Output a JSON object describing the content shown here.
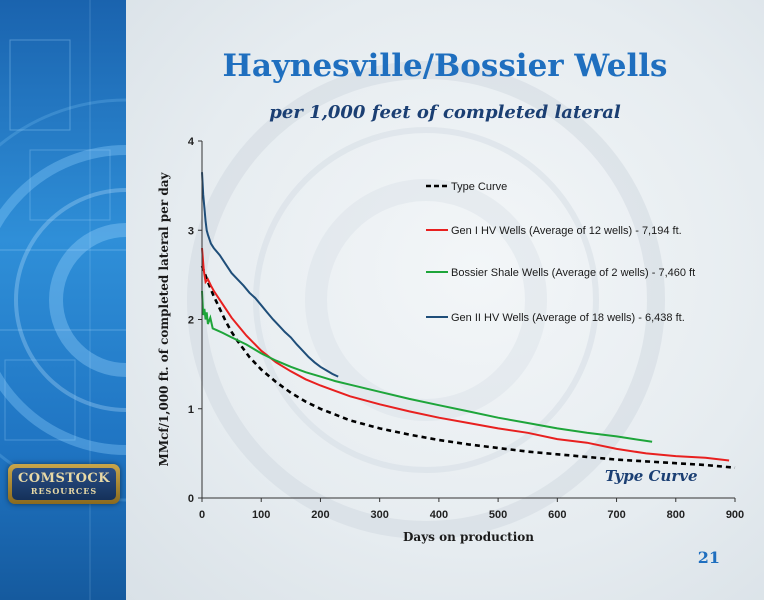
{
  "slide": {
    "title": "Haynesville/Bossier Wells",
    "subtitle": "per 1,000 feet of completed lateral",
    "page_number": "21",
    "logo": {
      "line1": "COMSTOCK",
      "line2": "RESOURCES"
    }
  },
  "colors": {
    "title": "#1f6fbf",
    "subtitle": "#1b3f73",
    "sidebar": "#2f8fd8"
  },
  "chart_data": {
    "type": "line",
    "xlabel": "Days on production",
    "ylabel": "MMcf/1,000 ft. of completed lateral per day",
    "xlim": [
      0,
      900
    ],
    "ylim": [
      0,
      4
    ],
    "xticks": [
      0,
      100,
      200,
      300,
      400,
      500,
      600,
      700,
      800,
      900
    ],
    "yticks": [
      0,
      1,
      2,
      3,
      4
    ],
    "grid": false,
    "legend_position": "upper-right",
    "annotation": "Type Curve",
    "series": [
      {
        "name": "Type Curve",
        "color": "#000000",
        "dash": true,
        "x": [
          0,
          10,
          20,
          30,
          40,
          50,
          60,
          80,
          100,
          125,
          150,
          175,
          200,
          250,
          300,
          350,
          400,
          450,
          500,
          550,
          600,
          650,
          700,
          750,
          800,
          850,
          900
        ],
        "y": [
          2.6,
          2.42,
          2.26,
          2.12,
          1.98,
          1.86,
          1.76,
          1.58,
          1.44,
          1.3,
          1.18,
          1.08,
          1.0,
          0.87,
          0.78,
          0.71,
          0.65,
          0.6,
          0.56,
          0.52,
          0.49,
          0.46,
          0.43,
          0.41,
          0.39,
          0.37,
          0.34
        ]
      },
      {
        "name": "Gen I HV Wells (Average of 12 wells) - 7,194 ft.",
        "color": "#e8201f",
        "dash": false,
        "x": [
          0,
          3,
          6,
          10,
          15,
          20,
          30,
          40,
          50,
          60,
          75,
          100,
          125,
          150,
          175,
          200,
          225,
          250,
          300,
          350,
          400,
          450,
          500,
          550,
          600,
          650,
          700,
          750,
          800,
          850,
          890
        ],
        "y": [
          2.8,
          2.55,
          2.42,
          2.45,
          2.38,
          2.32,
          2.22,
          2.12,
          2.02,
          1.94,
          1.82,
          1.65,
          1.52,
          1.42,
          1.33,
          1.26,
          1.2,
          1.14,
          1.05,
          0.97,
          0.9,
          0.84,
          0.78,
          0.73,
          0.66,
          0.62,
          0.55,
          0.5,
          0.47,
          0.45,
          0.42
        ]
      },
      {
        "name": "Bossier Shale Wells (Average of 2 wells) - 7,460 ft",
        "color": "#1ea53a",
        "dash": false,
        "x": [
          0,
          2,
          4,
          6,
          8,
          10,
          14,
          18,
          25,
          35,
          50,
          75,
          100,
          125,
          150,
          175,
          200,
          225,
          250,
          300,
          350,
          400,
          450,
          500,
          550,
          600,
          650,
          700,
          730,
          760
        ],
        "y": [
          2.32,
          2.05,
          2.12,
          2.0,
          2.08,
          1.95,
          2.02,
          1.9,
          1.88,
          1.85,
          1.8,
          1.72,
          1.62,
          1.54,
          1.47,
          1.41,
          1.36,
          1.31,
          1.27,
          1.19,
          1.11,
          1.04,
          0.97,
          0.9,
          0.84,
          0.78,
          0.73,
          0.69,
          0.66,
          0.63
        ]
      },
      {
        "name": "Gen II HV Wells (Average of 18 wells) - 6,438 ft.",
        "color": "#1f4e79",
        "dash": false,
        "x": [
          0,
          2,
          4,
          6,
          8,
          10,
          15,
          20,
          30,
          40,
          50,
          60,
          70,
          80,
          90,
          100,
          110,
          120,
          130,
          140,
          150,
          160,
          170,
          180,
          190,
          200,
          210,
          220,
          230
        ],
        "y": [
          3.65,
          3.4,
          3.25,
          3.1,
          3.0,
          2.95,
          2.85,
          2.8,
          2.72,
          2.62,
          2.52,
          2.45,
          2.38,
          2.3,
          2.24,
          2.16,
          2.08,
          2.0,
          1.93,
          1.86,
          1.8,
          1.72,
          1.65,
          1.58,
          1.52,
          1.47,
          1.43,
          1.39,
          1.36
        ]
      }
    ]
  }
}
